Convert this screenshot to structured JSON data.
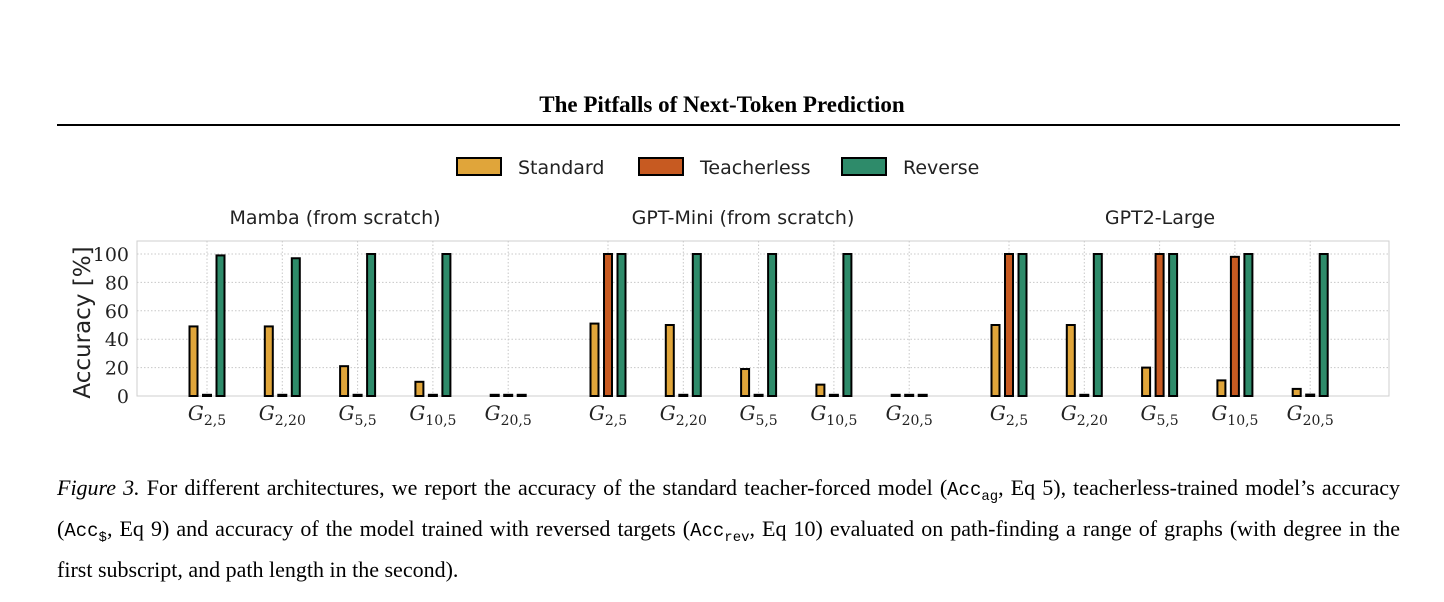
{
  "header": {
    "title": "The Pitfalls of Next-Token Prediction"
  },
  "legend": [
    {
      "label": "Standard",
      "color": "#E0A53A"
    },
    {
      "label": "Teacherless",
      "color": "#C75A21"
    },
    {
      "label": "Reverse",
      "color": "#2E8B6A"
    }
  ],
  "chart_data": {
    "type": "bar",
    "ylabel": "Accuracy [%]",
    "ylim": [
      0,
      110
    ],
    "yticks": [
      0,
      20,
      40,
      60,
      80,
      100
    ],
    "grid": true,
    "legend_position": "top-center",
    "categories": [
      {
        "base": "G",
        "sub": "2,5"
      },
      {
        "base": "G",
        "sub": "2,20"
      },
      {
        "base": "G",
        "sub": "5,5"
      },
      {
        "base": "G",
        "sub": "10,5"
      },
      {
        "base": "G",
        "sub": "20,5"
      }
    ],
    "panels": [
      {
        "title": "Mamba (from scratch)",
        "series": [
          {
            "name": "Standard",
            "values": [
              49,
              49,
              21,
              10,
              0
            ]
          },
          {
            "name": "Teacherless",
            "values": [
              0,
              0,
              0,
              0,
              0
            ]
          },
          {
            "name": "Reverse",
            "values": [
              99,
              97,
              100,
              100,
              0
            ]
          }
        ]
      },
      {
        "title": "GPT-Mini (from scratch)",
        "series": [
          {
            "name": "Standard",
            "values": [
              51,
              50,
              19,
              8,
              0
            ]
          },
          {
            "name": "Teacherless",
            "values": [
              100,
              0,
              0,
              0,
              0
            ]
          },
          {
            "name": "Reverse",
            "values": [
              100,
              100,
              100,
              100,
              0
            ]
          }
        ]
      },
      {
        "title": "GPT2-Large",
        "series": [
          {
            "name": "Standard",
            "values": [
              50,
              50,
              20,
              11,
              5
            ]
          },
          {
            "name": "Teacherless",
            "values": [
              100,
              0,
              100,
              98,
              1
            ]
          },
          {
            "name": "Reverse",
            "values": [
              100,
              100,
              100,
              100,
              100
            ]
          }
        ]
      }
    ]
  },
  "caption": {
    "label": "Figure 3.",
    "text1": " For different architectures, we report the accuracy of the standard teacher-forced model (",
    "acc1_base": "Acc",
    "acc1_sub": "ag",
    "text2": ", Eq 5), teacherless-trained model’s accuracy (",
    "acc2_base": "Acc",
    "acc2_sub": "$",
    "text3": ", Eq 9) and accuracy of the model trained with reversed targets (",
    "acc3_base": "Acc",
    "acc3_sub": "rev",
    "text4": ", Eq 10) evaluated on path-finding a range of graphs (with degree in the first subscript, and path length in the second)."
  }
}
